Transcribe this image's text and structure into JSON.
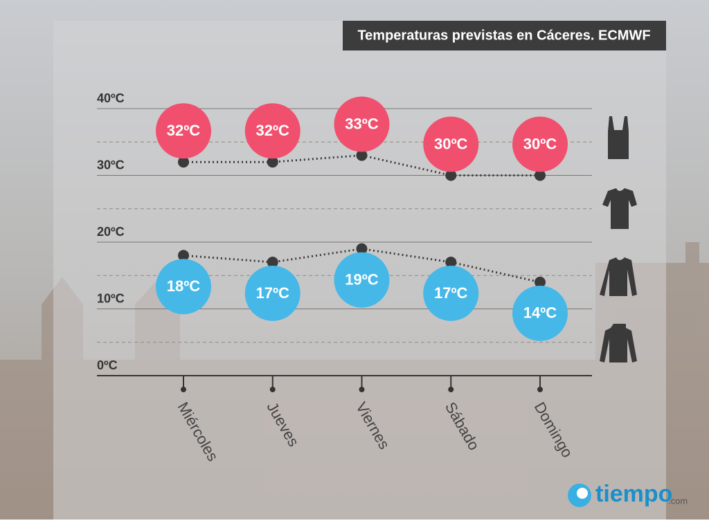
{
  "chart_data": {
    "type": "line",
    "title": "Temperaturas previstas en Cáceres. ECMWF",
    "categories": [
      "Miércoles",
      "Jueves",
      "Viernes",
      "Sábado",
      "Domingo"
    ],
    "series": [
      {
        "color": "#f0506e",
        "values": [
          32,
          32,
          33,
          30,
          30
        ],
        "value_labels": [
          "32ºC",
          "32ºC",
          "33ºC",
          "30ºC",
          "30ºC"
        ]
      },
      {
        "color": "#45b8e8",
        "values": [
          18,
          17,
          19,
          17,
          14
        ],
        "value_labels": [
          "18ºC",
          "17ºC",
          "19ºC",
          "17ºC",
          "14ºC"
        ]
      }
    ],
    "line_color": "#3a3a3a",
    "ylim": [
      0,
      40
    ],
    "yticks": [
      {
        "value": 0,
        "label": "0ºC"
      },
      {
        "value": 10,
        "label": "10ºC"
      },
      {
        "value": 20,
        "label": "20ºC"
      },
      {
        "value": 30,
        "label": "30ºC"
      },
      {
        "value": 40,
        "label": "40ºC"
      }
    ],
    "minor_gridlines": [
      5,
      15,
      25,
      35
    ],
    "grid": true
  },
  "brand": {
    "name": "tiempo",
    "suffix": ".com"
  }
}
